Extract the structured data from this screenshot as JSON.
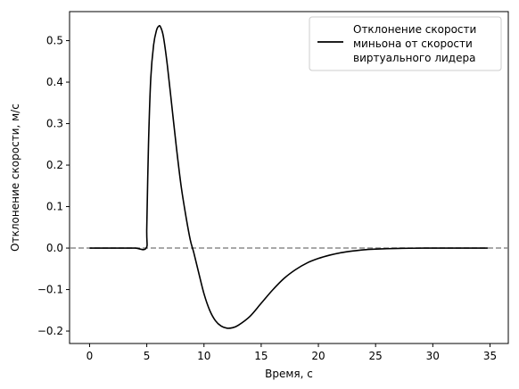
{
  "chart_data": {
    "type": "line",
    "title": "",
    "xlabel": "Время, с",
    "ylabel": "Отклонение скорости, м/с",
    "xlim": [
      -1.75,
      36.6
    ],
    "ylim": [
      -0.23,
      0.57
    ],
    "xticks": [
      0,
      5,
      10,
      15,
      20,
      25,
      30,
      35
    ],
    "yticks": [
      -0.2,
      -0.1,
      0.0,
      0.1,
      0.2,
      0.3,
      0.4,
      0.5
    ],
    "xtick_labels": [
      "0",
      "5",
      "10",
      "15",
      "20",
      "25",
      "30",
      "35"
    ],
    "ytick_labels": [
      "−0.2",
      "−0.1",
      "0.0",
      "0.1",
      "0.2",
      "0.3",
      "0.4",
      "0.5"
    ],
    "grid": false,
    "legend_position": "top-right",
    "reference_lines": [
      {
        "axis": "y",
        "value": 0.0,
        "style": "dashed",
        "color": "#8c8c8c"
      }
    ],
    "series": [
      {
        "name": "Отклонение скорости миньона от скорости виртуального лидера",
        "color": "#000000",
        "legend_lines": [
          "Отклонение скорости",
          "миньона от скорости",
          "виртуального лидера"
        ],
        "x": [
          0.0,
          1,
          2,
          3,
          4,
          4.95,
          5.0,
          5.15,
          5.35,
          5.6,
          5.85,
          6.05,
          6.2,
          6.45,
          6.8,
          7.2,
          7.6,
          8.0,
          8.4,
          8.8,
          9.1,
          9.5,
          10.0,
          10.5,
          11.0,
          11.5,
          12.0,
          12.5,
          13.0,
          14.0,
          15.0,
          16.0,
          17.0,
          18.0,
          19.0,
          20.0,
          21.0,
          22.0,
          23.0,
          24.0,
          25.0,
          26.0,
          27.0,
          28.0,
          30.0,
          32.0,
          34.8
        ],
        "y": [
          0.0,
          0.0,
          0.0,
          0.0,
          0.0,
          0.0,
          0.05,
          0.25,
          0.41,
          0.49,
          0.525,
          0.535,
          0.533,
          0.51,
          0.44,
          0.34,
          0.24,
          0.15,
          0.08,
          0.02,
          -0.01,
          -0.055,
          -0.11,
          -0.15,
          -0.175,
          -0.188,
          -0.193,
          -0.192,
          -0.186,
          -0.165,
          -0.133,
          -0.101,
          -0.073,
          -0.052,
          -0.036,
          -0.025,
          -0.017,
          -0.011,
          -0.007,
          -0.004,
          -0.0025,
          -0.0015,
          -0.0008,
          -0.0004,
          0.0,
          0.0,
          0.0
        ]
      }
    ]
  }
}
